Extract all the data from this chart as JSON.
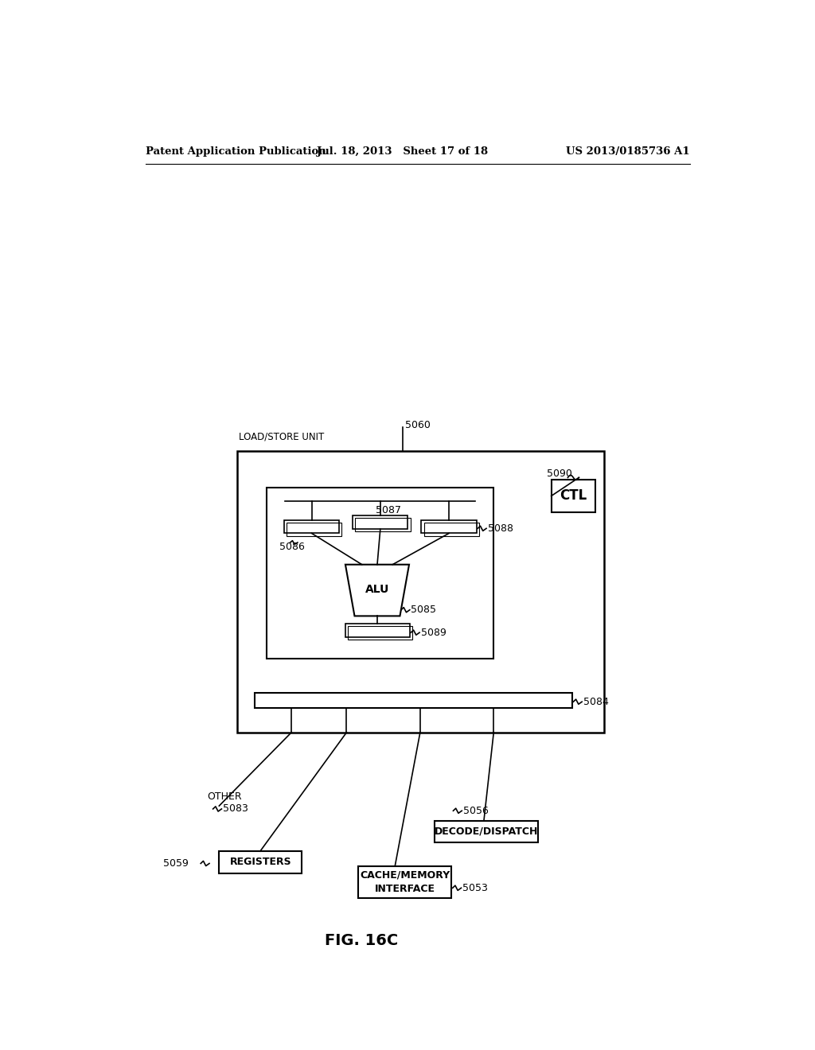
{
  "bg_color": "#ffffff",
  "header_left": "Patent Application Publication",
  "header_mid": "Jul. 18, 2013   Sheet 17 of 18",
  "header_right": "US 2013/0185736 A1",
  "fig_label": "FIG. 16C",
  "title_text": "LOAD/STORE UNIT",
  "label_5060": "5060",
  "label_5090": "5090",
  "label_ctl": "CTL",
  "label_5087": "5087",
  "label_5086": "5086",
  "label_5088": "5088",
  "label_alu": "ALU",
  "label_5085": "5085",
  "label_5089": "5089",
  "label_5084": "5084",
  "label_5083": "5083",
  "label_other": "OTHER",
  "label_5059": "5059",
  "label_registers": "REGISTERS",
  "label_5056": "5056",
  "label_decode": "DECODE/DISPATCH",
  "label_5053": "5053",
  "label_cache": "CACHE/MEMORY\nINTERFACE"
}
